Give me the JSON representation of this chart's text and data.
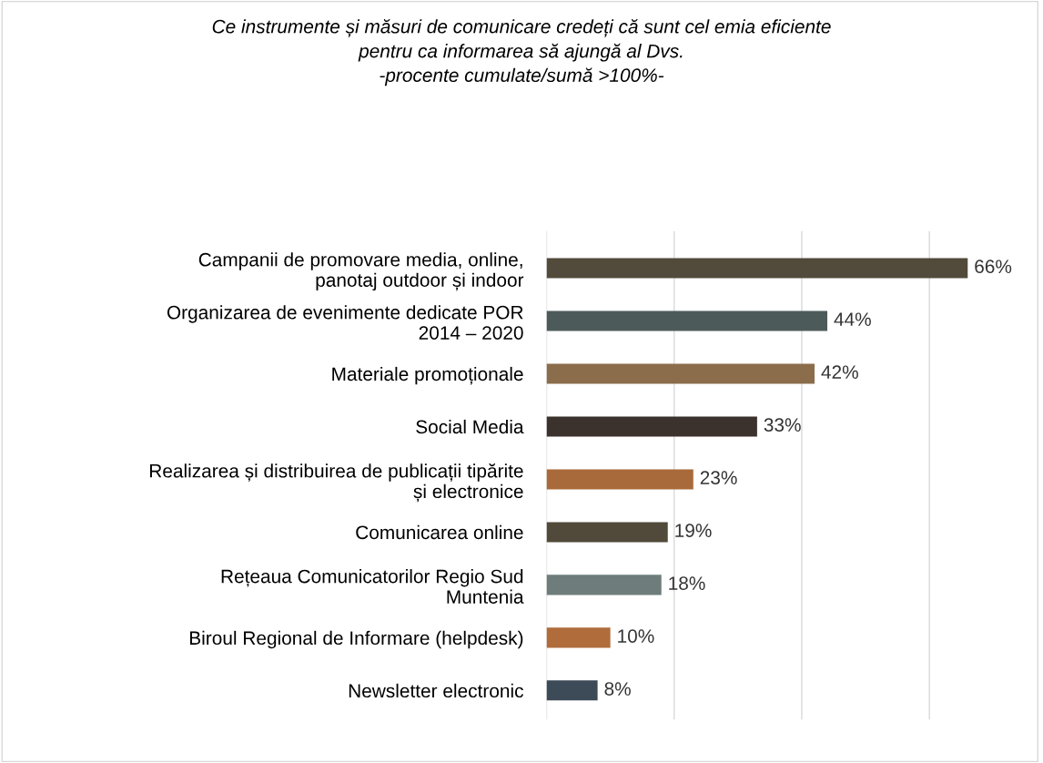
{
  "chart_data": {
    "type": "bar",
    "orientation": "horizontal",
    "title": "Ce instrumente și măsuri de comunicare credeți că sunt cel emia eficiente\npentru ca informarea să ajungă al Dvs.\n-procente cumulate/sumă >100%-",
    "categories": [
      "Campanii de promovare media, online,\npanotaj outdoor și indoor",
      "Organizarea de evenimente dedicate POR\n2014 – 2020",
      "Materiale promoționale",
      "Social Media",
      "Realizarea și distribuirea de publicații tipărite\nși electronice",
      "Comunicarea online",
      "Rețeaua Comunicatorilor Regio Sud\nMuntenia",
      "Biroul Regional de Informare (helpdesk)",
      "Newsletter electronic"
    ],
    "values": [
      66,
      44,
      42,
      33,
      23,
      19,
      18,
      10,
      8
    ],
    "colors": [
      "#524a3a",
      "#4d5a5a",
      "#8b6d4c",
      "#3b322d",
      "#a86a3a",
      "#514a3a",
      "#6e7c7b",
      "#b06c3b",
      "#3d4a57"
    ],
    "value_labels": [
      "66%",
      "44%",
      "42%",
      "33%",
      "23%",
      "19%",
      "18%",
      "10%",
      "8%"
    ],
    "xticks": [
      {
        "value": 0,
        "label": null
      },
      {
        "value": 20,
        "label": null
      },
      {
        "value": 40,
        "label": null
      },
      {
        "value": 60,
        "label": null
      }
    ],
    "grid": "x",
    "tick_labels": "y",
    "legend": false
  }
}
